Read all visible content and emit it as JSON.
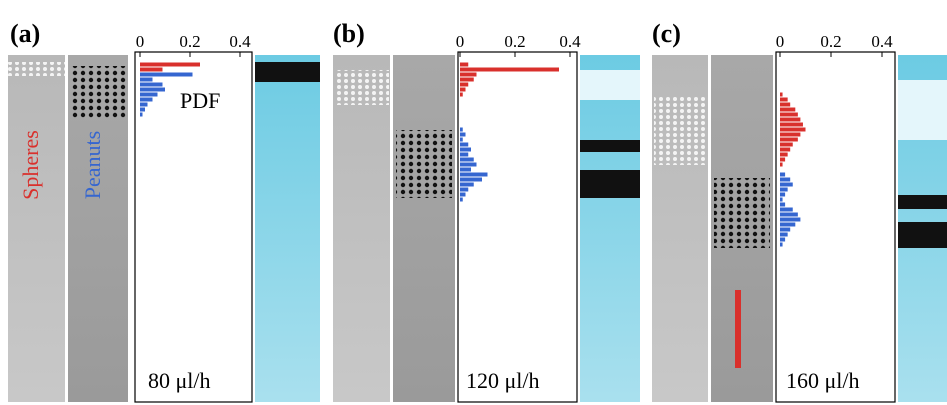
{
  "chart_data": [
    {
      "type": "bar",
      "orientation": "horizontal",
      "panel": "(a)",
      "label": "PDF",
      "annotation": "80 μl/h",
      "xlim": [
        0,
        0.4
      ],
      "xticks": [
        0,
        0.2,
        0.4
      ],
      "categories": [
        null,
        null,
        null,
        null,
        null,
        null,
        null,
        null,
        null,
        null,
        null,
        null,
        null,
        null,
        null,
        null,
        null
      ],
      "series": [
        {
          "name": "Spheres",
          "color": "#d9302c",
          "values": [
            null,
            null,
            null,
            null,
            null,
            null,
            0.24,
            0.09,
            null,
            null,
            null,
            null,
            null,
            null,
            null,
            null,
            null
          ]
        },
        {
          "name": "Peanuts",
          "color": "#3566d0",
          "values": [
            null,
            null,
            null,
            null,
            null,
            null,
            null,
            null,
            0.21,
            0.05,
            0.09,
            0.1,
            0.07,
            0.05,
            0.03,
            0.02,
            0.01
          ]
        }
      ]
    },
    {
      "type": "bar",
      "orientation": "horizontal",
      "panel": "(b)",
      "annotation": "120 μl/h",
      "xlim": [
        0,
        0.4
      ],
      "xticks": [
        0,
        0.2,
        0.4
      ],
      "categories": [
        null,
        null,
        null,
        null,
        null,
        null,
        null,
        null,
        null,
        null,
        null,
        null,
        null,
        null,
        null,
        null,
        null,
        null,
        null,
        null,
        null,
        null,
        null,
        null,
        null,
        null,
        null,
        null,
        null,
        null,
        null,
        null,
        null,
        null
      ],
      "series": [
        {
          "values": [
            null,
            null,
            null,
            null,
            null,
            null,
            0.03,
            0.36,
            0.06,
            0.05,
            0.03,
            0.02,
            0.01,
            null,
            null,
            null,
            null,
            null,
            null,
            null,
            null,
            null,
            null,
            null,
            null,
            null,
            null,
            null,
            null,
            null,
            null,
            null,
            null,
            null
          ],
          "color": "#d9302c"
        },
        {
          "values": [
            null,
            null,
            null,
            null,
            null,
            null,
            null,
            null,
            null,
            null,
            null,
            null,
            null,
            null,
            null,
            null,
            null,
            null,
            null,
            0.01,
            0.02,
            0.01,
            0.03,
            0.04,
            0.03,
            0.05,
            0.06,
            0.04,
            0.1,
            0.08,
            0.05,
            0.03,
            0.02,
            0.01
          ],
          "color": "#3566d0"
        }
      ]
    },
    {
      "type": "bar",
      "orientation": "horizontal",
      "panel": "(c)",
      "annotation": "160 μl/h",
      "xlim": [
        0,
        0.4
      ],
      "xticks": [
        0,
        0.2,
        0.4
      ],
      "categories": [
        null,
        null,
        null,
        null,
        null,
        null,
        null,
        null,
        null,
        null,
        null,
        null,
        null,
        null,
        null,
        null,
        null,
        null,
        null,
        null,
        null,
        null,
        null,
        null,
        null,
        null,
        null,
        null,
        null,
        null,
        null,
        null,
        null,
        null,
        null,
        null,
        null,
        null,
        null,
        null,
        null,
        null,
        null
      ],
      "series": [
        {
          "values": [
            null,
            null,
            null,
            null,
            null,
            null,
            null,
            null,
            null,
            null,
            null,
            null,
            0.01,
            0.03,
            0.04,
            0.06,
            0.07,
            0.08,
            0.09,
            0.1,
            0.08,
            0.07,
            0.05,
            0.04,
            0.03,
            0.02,
            0.01,
            null,
            null,
            null,
            null,
            null,
            null,
            null,
            null,
            null,
            null,
            null,
            null,
            null,
            null,
            null,
            null
          ],
          "color": "#d9302c"
        },
        {
          "values": [
            null,
            null,
            null,
            null,
            null,
            null,
            null,
            null,
            null,
            null,
            null,
            null,
            null,
            null,
            null,
            null,
            null,
            null,
            null,
            null,
            null,
            null,
            null,
            null,
            null,
            null,
            null,
            null,
            0.02,
            0.04,
            0.05,
            0.03,
            0.02,
            0.01,
            0.02,
            0.05,
            0.07,
            0.08,
            0.06,
            0.04,
            0.03,
            0.02,
            0.01
          ],
          "color": "#3566d0"
        }
      ]
    }
  ]
}
